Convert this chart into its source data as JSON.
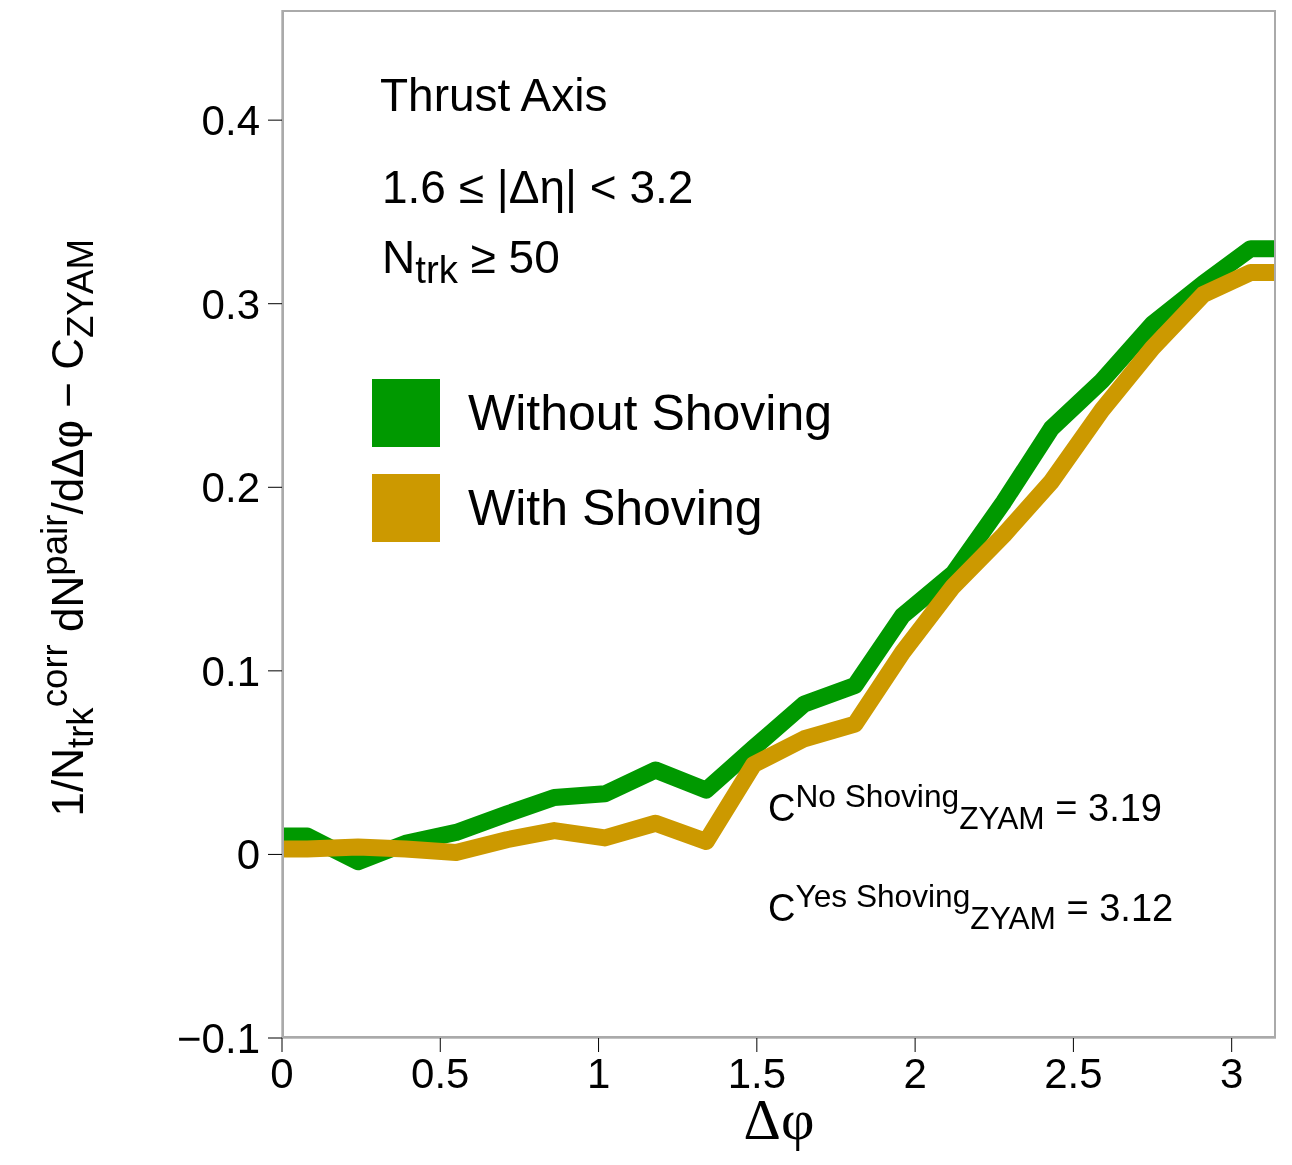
{
  "chart_data": {
    "type": "line",
    "xlabel": "Δφ",
    "ylabel": "1/N$_{trk}$$^{corr}$ dN$^{pair}$/dΔφ − C$_{ZYAM}$",
    "annotations": [
      "Thrust Axis",
      "1.6 ≤ |Δη| < 3.2",
      "N$_{trk}$ ≥ 50",
      "C$^{No Shoving}$$_{ZYAM}$ = 3.19",
      "C$^{Yes Shoving}$$_{ZYAM}$ = 3.12"
    ],
    "x": [
      0,
      0.08,
      0.24,
      0.39,
      0.55,
      0.71,
      0.86,
      1.02,
      1.18,
      1.34,
      1.49,
      1.65,
      1.81,
      1.96,
      2.12,
      2.28,
      2.43,
      2.59,
      2.75,
      2.91,
      3.06,
      3.14
    ],
    "series": [
      {
        "name": "Without Shoving",
        "color": "#009900",
        "values": [
          0.01,
          0.01,
          -0.004,
          0.006,
          0.012,
          0.022,
          0.031,
          0.033,
          0.046,
          0.035,
          0.058,
          0.082,
          0.092,
          0.13,
          0.153,
          0.192,
          0.232,
          0.258,
          0.289,
          0.311,
          0.33,
          0.33
        ]
      },
      {
        "name": "With Shoving",
        "color": "#cc9900",
        "values": [
          0.003,
          0.003,
          0.004,
          0.003,
          0.001,
          0.008,
          0.013,
          0.009,
          0.017,
          0.007,
          0.049,
          0.063,
          0.071,
          0.11,
          0.146,
          0.174,
          0.203,
          0.242,
          0.276,
          0.305,
          0.317,
          0.317
        ]
      }
    ],
    "xlim": [
      0,
      3.14
    ],
    "xticks": [
      0,
      0.5,
      1,
      1.5,
      2,
      2.5,
      3
    ],
    "ylim": [
      -0.1,
      0.46
    ],
    "yticks": [
      -0.1,
      0,
      0.1,
      0.2,
      0.3,
      0.4
    ],
    "grid": false,
    "legend": "top left",
    "marker": "none",
    "line_style": "solid"
  }
}
